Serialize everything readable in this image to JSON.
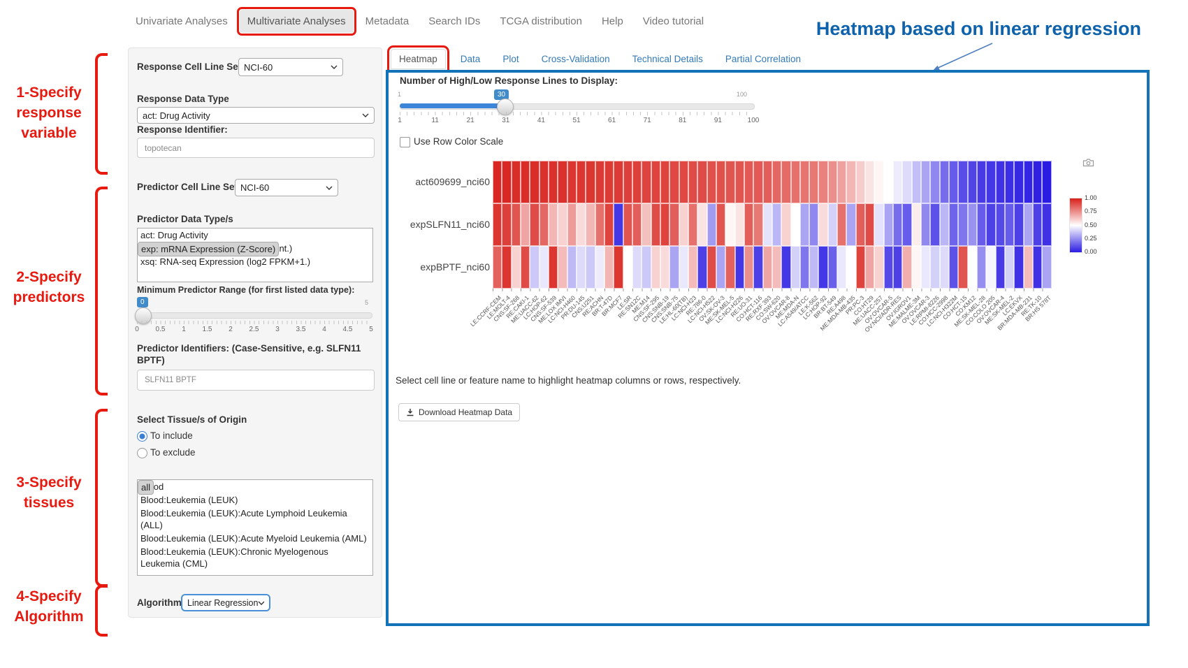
{
  "nav": {
    "items": [
      "Univariate Analyses",
      "Multivariate Analyses",
      "Metadata",
      "Search IDs",
      "TCGA distribution",
      "Help",
      "Video tutorial"
    ],
    "active": "Multivariate Analyses"
  },
  "annotations": {
    "heading": "Heatmap based on linear regression",
    "steps": [
      {
        "lines": [
          "1-Specify",
          "response",
          "variable"
        ]
      },
      {
        "lines": [
          "2-Specify",
          "predictors"
        ]
      },
      {
        "lines": [
          "3-Specify",
          "tissues"
        ]
      },
      {
        "lines": [
          "4-Specify",
          "Algorithm"
        ]
      }
    ],
    "red_color": "#e8190f",
    "blue_color": "#0e62ab"
  },
  "sidebar": {
    "response_cell_line_set": {
      "label": "Response Cell Line Set",
      "value": "NCI-60"
    },
    "response_data_type": {
      "label": "Response Data Type",
      "value": "act: Drug Activity"
    },
    "response_identifier": {
      "label": "Response Identifier:",
      "value": "topotecan"
    },
    "predictor_cell_line_set": {
      "label": "Predictor Cell Line Set",
      "value": "NCI-60"
    },
    "predictor_data_types": {
      "label": "Predictor Data Type/s",
      "options": [
        "act: Drug Activity",
        "exp: mRNA Expression (Z-Score)",
        "xai: mRNA Expression (Avg. log2 Int.)",
        "xsq: RNA-seq Expression (log2 FPKM+1.)"
      ],
      "selected": "exp: mRNA Expression (Z-Score)"
    },
    "min_predictor_range": {
      "label": "Minimum Predictor Range (for first listed data type):",
      "value": "0",
      "max_label": "5",
      "ticks": [
        "0",
        "0.5",
        "1",
        "1.5",
        "2",
        "2.5",
        "3",
        "3.5",
        "4",
        "4.5",
        "5"
      ]
    },
    "predictor_identifiers": {
      "label_line1": "Predictor Identifiers: (Case-Sensitive, e.g. SLFN11",
      "label_line2": "BPTF)",
      "value": "SLFN11 BPTF"
    },
    "tissue": {
      "label": "Select Tissue/s of Origin",
      "radios": [
        {
          "label": "To include",
          "selected": true
        },
        {
          "label": "To exclude",
          "selected": false
        }
      ],
      "options": [
        "all",
        "Blood",
        "Blood:Leukemia (LEUK)",
        "Blood:Leukemia (LEUK):Acute Lymphoid Leukemia (ALL)",
        "Blood:Leukemia (LEUK):Acute Myeloid Leukemia (AML)",
        "Blood:Leukemia (LEUK):Chronic Myelogenous Leukemia (CML)"
      ],
      "selected": "all"
    },
    "algorithm": {
      "label": "Algorithm",
      "value": "Linear Regression"
    }
  },
  "tabs": {
    "items": [
      "Heatmap",
      "Data",
      "Plot",
      "Cross-Validation",
      "Technical Details",
      "Partial Correlation"
    ],
    "active": "Heatmap"
  },
  "panel": {
    "slider": {
      "label": "Number of High/Low Response Lines to Display:",
      "min": "1",
      "max": "100",
      "value": "30",
      "ticks": [
        "1",
        "11",
        "21",
        "31",
        "41",
        "51",
        "61",
        "71",
        "81",
        "91",
        "100"
      ]
    },
    "row_color_checkbox": "Use Row Color Scale",
    "hint": "Select cell line or feature name to highlight heatmap columns or rows, respectively.",
    "download_button": "Download Heatmap Data"
  },
  "chart_data": {
    "type": "heatmap",
    "title": "Heatmap based on linear regression",
    "rows": [
      "act609699_nci60",
      "expSLFN11_nci60",
      "expBPTF_nci60"
    ],
    "columns": [
      "LE:CCRF-CEM",
      "LE:MOLT-4",
      "CNS:SF-268",
      "RE:CAKI-1",
      "ME:UACC-62",
      "LC:HOP-62",
      "CNS:SF-539",
      "ME:LOX IMVI",
      "LC:NCI-H460",
      "PR:DU-145",
      "CNS:U251",
      "RE:ACHN",
      "BR:T-47D",
      "BR:MCF7",
      "LE:SR",
      "RE:SN12C",
      "ME:M14",
      "CNS:SF-295",
      "CNS:SNB-19",
      "CNS:SNB-75",
      "LE:HL-60(TB)",
      "LC:NCI-H23",
      "RE:786-0",
      "LC:NCI-H522",
      "OV:SK-OV-3",
      "ME:SK-MEL-5",
      "LC:NCI-H226",
      "RE:UO-31",
      "CO:HCT-116",
      "RE:RXF 393",
      "CO:SW-620",
      "OV:OVCAR-8",
      "ME:MDA-N",
      "LC:A549/ATCC",
      "LE:K-562",
      "LC:HOP-92",
      "BR:BT-549",
      "RE:A498",
      "ME:MDA-MB-435",
      "PR:PC-3",
      "CO:HT29",
      "ME:UACC-257",
      "OV:OVCAR-5",
      "OV:NCI/ADR-RES",
      "OV:IGROV1",
      "ME:MALME-3M",
      "OV:OVCAR-3",
      "LE:RPMI-8226",
      "CO:HCC-2998",
      "LC:NCI-H322M",
      "CO:HCT-15",
      "CO:KM12",
      "ME:SK-MEL-28",
      "CO:COLO 205",
      "OV:OVCAR-4",
      "ME:SK-MEL-2",
      "LC:EKVX",
      "BR:MDA-MB-231",
      "RE:TK-10",
      "BR:HS 578T"
    ],
    "series": [
      {
        "name": "act609699_nci60",
        "values": [
          0.98,
          0.98,
          0.97,
          0.97,
          0.97,
          0.96,
          0.96,
          0.96,
          0.95,
          0.95,
          0.95,
          0.94,
          0.94,
          0.94,
          0.93,
          0.93,
          0.92,
          0.92,
          0.92,
          0.91,
          0.91,
          0.9,
          0.9,
          0.89,
          0.89,
          0.88,
          0.88,
          0.87,
          0.87,
          0.86,
          0.84,
          0.83,
          0.82,
          0.81,
          0.8,
          0.78,
          0.75,
          0.71,
          0.66,
          0.61,
          0.56,
          0.52,
          0.5,
          0.46,
          0.42,
          0.36,
          0.3,
          0.24,
          0.18,
          0.14,
          0.11,
          0.09,
          0.07,
          0.06,
          0.05,
          0.04,
          0.03,
          0.02,
          0.01,
          0.0
        ]
      },
      {
        "name": "expSLFN11_nci60",
        "values": [
          0.95,
          0.93,
          0.88,
          0.7,
          0.9,
          0.84,
          0.66,
          0.6,
          0.72,
          0.58,
          0.66,
          0.82,
          0.92,
          0.06,
          0.88,
          0.86,
          0.64,
          0.9,
          0.92,
          0.86,
          0.6,
          0.82,
          0.56,
          0.28,
          0.88,
          0.52,
          0.56,
          0.86,
          0.8,
          0.44,
          0.34,
          0.6,
          0.5,
          0.3,
          0.24,
          0.58,
          0.4,
          0.82,
          0.3,
          0.86,
          0.9,
          0.44,
          0.3,
          0.18,
          0.14,
          0.54,
          0.24,
          0.12,
          0.34,
          0.16,
          0.2,
          0.26,
          0.14,
          0.08,
          0.1,
          0.14,
          0.08,
          0.3,
          0.08,
          0.05
        ]
      },
      {
        "name": "expBPTF_nci60",
        "values": [
          0.85,
          0.95,
          0.6,
          0.9,
          0.38,
          0.45,
          0.95,
          0.65,
          0.35,
          0.42,
          0.38,
          0.46,
          0.66,
          0.95,
          0.5,
          0.42,
          0.38,
          0.6,
          0.58,
          0.3,
          0.45,
          0.65,
          0.08,
          0.9,
          0.3,
          0.85,
          0.06,
          0.75,
          0.08,
          0.7,
          0.65,
          0.06,
          0.4,
          0.2,
          0.35,
          0.06,
          0.15,
          0.45,
          0.5,
          0.92,
          0.7,
          0.6,
          0.1,
          0.08,
          0.68,
          0.52,
          0.45,
          0.4,
          0.42,
          0.12,
          0.88,
          0.5,
          0.25,
          0.48,
          0.07,
          0.4,
          0.05,
          0.65,
          0.05,
          0.3
        ]
      }
    ],
    "colorscale": {
      "min": 0,
      "max": 1,
      "min_color": "#2b1ce2",
      "mid_color": "#ffffff",
      "max_color": "#d8201a",
      "ticks": [
        "1.00",
        "0.75",
        "0.50",
        "0.25",
        "0.00"
      ],
      "legend_position": "right"
    },
    "xlabel": "",
    "ylabel": "",
    "grid": false
  }
}
